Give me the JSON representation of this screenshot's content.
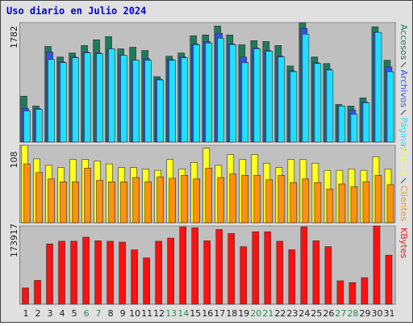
{
  "chart_data": [
    {
      "type": "bar",
      "title": "Uso diario en Julio 2024",
      "ylim": [
        0,
        1782
      ],
      "yticks": [
        1782
      ],
      "series": [
        {
          "name": "Accesos",
          "color": "#1f7a5c",
          "values": [
            683,
            537,
            1427,
            1269,
            1330,
            1440,
            1525,
            1574,
            1391,
            1415,
            1366,
            976,
            1281,
            1330,
            1586,
            1598,
            1732,
            1598,
            1452,
            1513,
            1501,
            1440,
            1135,
            1782,
            1269,
            1171,
            561,
            537,
            659,
            1720,
            1220
          ]
        },
        {
          "name": "Archivos",
          "color": "#3050f0",
          "values": [
            500,
            500,
            1342,
            1196,
            1269,
            1342,
            1330,
            1391,
            1293,
            1220,
            1244,
            940,
            1232,
            1269,
            1464,
            1500,
            1623,
            1464,
            1269,
            1403,
            1366,
            1281,
            1062,
            1696,
            1183,
            1086,
            537,
            476,
            598,
            1635,
            1122
          ]
        },
        {
          "name": "Páginas",
          "color": "#20e0ff",
          "values": [
            464,
            488,
            1232,
            1183,
            1257,
            1330,
            1318,
            1391,
            1293,
            1220,
            1220,
            927,
            1220,
            1257,
            1452,
            1476,
            1549,
            1452,
            1183,
            1391,
            1354,
            1269,
            1049,
            1610,
            1171,
            1074,
            537,
            415,
            586,
            1635,
            1049
          ]
        }
      ]
    },
    {
      "type": "bar",
      "ylim": [
        0,
        108
      ],
      "yticks": [
        108
      ],
      "series": [
        {
          "name": "Visitas",
          "color": "#ffff20",
          "values": [
            108,
            89,
            80,
            77,
            88,
            88,
            86,
            82,
            77,
            77,
            75,
            73,
            88,
            75,
            84,
            104,
            80,
            95,
            88,
            95,
            83,
            77,
            88,
            88,
            83,
            73,
            73,
            75,
            73,
            92,
            75
          ]
        },
        {
          "name": "Clientes",
          "color": "#ff9010",
          "values": [
            82,
            70,
            61,
            57,
            57,
            76,
            59,
            57,
            57,
            63,
            57,
            64,
            62,
            66,
            61,
            76,
            63,
            68,
            66,
            66,
            60,
            66,
            56,
            61,
            56,
            47,
            54,
            50,
            57,
            66,
            53
          ]
        }
      ]
    },
    {
      "type": "bar",
      "ylim": [
        0,
        173917
      ],
      "yticks": [
        173917
      ],
      "categories": [
        "1",
        "2",
        "3",
        "4",
        "5",
        "6",
        "7",
        "8",
        "9",
        "10",
        "11",
        "12",
        "13",
        "14",
        "15",
        "16",
        "17",
        "18",
        "19",
        "20",
        "21",
        "22",
        "23",
        "24",
        "25",
        "26",
        "27",
        "28",
        "29",
        "30",
        "31"
      ],
      "category_colors": [
        "#202020",
        "#202020",
        "#202020",
        "#202020",
        "#202020",
        "#2e8b57",
        "#2e8b57",
        "#202020",
        "#202020",
        "#202020",
        "#202020",
        "#202020",
        "#2e8b57",
        "#2e8b57",
        "#202020",
        "#202020",
        "#202020",
        "#202020",
        "#202020",
        "#2e8b57",
        "#2e8b57",
        "#202020",
        "#202020",
        "#202020",
        "#202020",
        "#202020",
        "#2e8b57",
        "#2e8b57",
        "#202020",
        "#202020",
        "#202020"
      ],
      "series": [
        {
          "name": "KBytes",
          "color": "#ff1010",
          "values": [
            36000,
            53000,
            134000,
            140000,
            140000,
            149000,
            141000,
            140000,
            138000,
            121000,
            103000,
            140000,
            147000,
            172000,
            170000,
            141000,
            166000,
            157000,
            128000,
            161000,
            161000,
            140000,
            121000,
            172000,
            141000,
            128000,
            52000,
            48000,
            59000,
            173917,
            109000
          ]
        }
      ]
    }
  ]
}
